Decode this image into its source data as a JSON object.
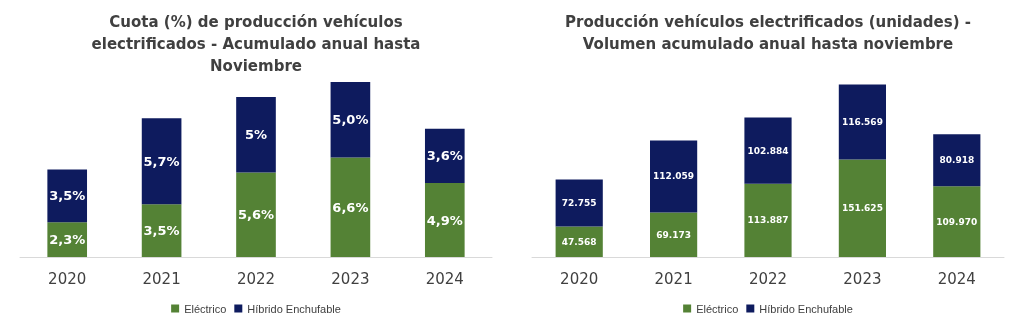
{
  "chart_data": [
    {
      "type": "bar",
      "title": "Cuota (%) de producción vehículos\nelectrificados - Acumulado anual hasta\nNoviembre",
      "categories": [
        "2020",
        "2021",
        "2022",
        "2023",
        "2024"
      ],
      "stacked": true,
      "legend": "bottom",
      "series": [
        {
          "name": "Eléctrico",
          "color": "#548235",
          "values": [
            2.3,
            3.5,
            5.6,
            6.6,
            4.9
          ],
          "value_labels": [
            "2,3%",
            "3,5%",
            "5,6%",
            "6,6%",
            "4,9%"
          ]
        },
        {
          "name": "Híbrido Enchufable",
          "color": "#0e1b5e",
          "values": [
            3.5,
            5.7,
            5,
            5.0,
            3.6
          ],
          "value_labels": [
            "3,5%",
            "5,7%",
            "5%",
            "5,0%",
            "3,6%"
          ]
        }
      ]
    },
    {
      "type": "bar",
      "title": "Producción vehículos electrificados (unidades) -\nVolumen acumulado anual hasta noviembre",
      "categories": [
        "2020",
        "2021",
        "2022",
        "2023",
        "2024"
      ],
      "stacked": true,
      "legend": "bottom",
      "series": [
        {
          "name": "Eléctrico",
          "color": "#548235",
          "values": [
            47568,
            69173,
            113887,
            151625,
            109970
          ],
          "value_labels": [
            "47.568",
            "69.173",
            "113.887",
            "151.625",
            "109.970"
          ]
        },
        {
          "name": "Híbrido Enchufable",
          "color": "#0e1b5e",
          "values": [
            72755,
            112059,
            102884,
            116569,
            80918
          ],
          "value_labels": [
            "72.755",
            "112.059",
            "102.884",
            "116.569",
            "80.918"
          ]
        }
      ]
    }
  ]
}
